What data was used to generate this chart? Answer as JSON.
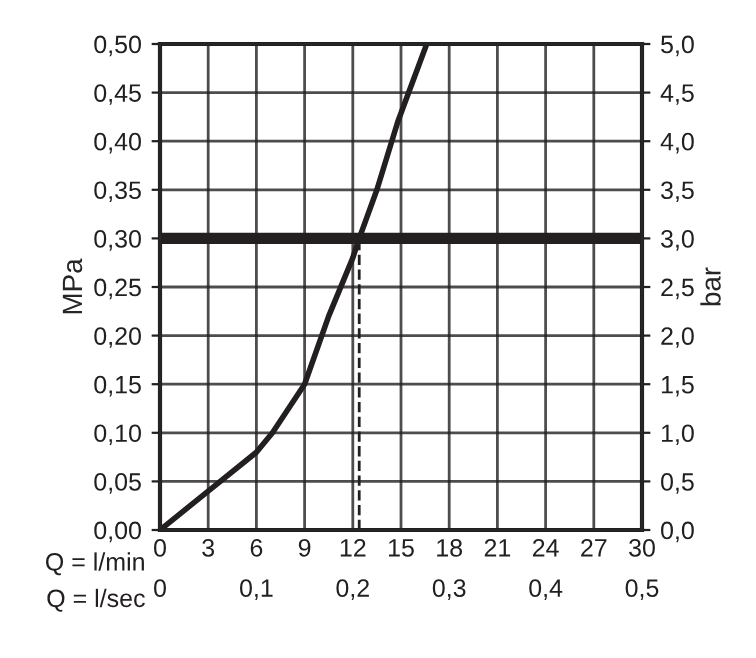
{
  "chart_data": {
    "type": "line",
    "xlabel": "Q = l/min",
    "x2label": "Q = l/sec",
    "ylabel": "MPa",
    "y2label": "bar",
    "x": [
      0,
      3,
      6,
      7,
      9,
      10.5,
      12,
      12.4,
      13.5,
      14.8,
      16.6
    ],
    "series": [
      {
        "color": "#231f20",
        "values": [
          0,
          0.04,
          0.08,
          0.1,
          0.15,
          0.22,
          0.28,
          0.3,
          0.35,
          0.42,
          0.5
        ]
      }
    ],
    "xlim": [
      0,
      30
    ],
    "xticks": [
      0,
      3,
      6,
      9,
      12,
      15,
      18,
      21,
      24,
      27,
      30
    ],
    "ylim": [
      0,
      0.5
    ],
    "yticks": [
      {
        "value": 0,
        "label": "0,00"
      },
      {
        "value": 0.05,
        "label": "0,05"
      },
      {
        "value": 0.1,
        "label": "0,10"
      },
      {
        "value": 0.15,
        "label": "0,15"
      },
      {
        "value": 0.2,
        "label": "0,20"
      },
      {
        "value": 0.25,
        "label": "0,25"
      },
      {
        "value": 0.3,
        "label": "0,30"
      },
      {
        "value": 0.35,
        "label": "0,35"
      },
      {
        "value": 0.4,
        "label": "0,40"
      },
      {
        "value": 0.45,
        "label": "0,45"
      },
      {
        "value": 0.5,
        "label": "0,50"
      }
    ],
    "y2lim": [
      0,
      5
    ],
    "y2ticks": [
      {
        "value": 0,
        "label": "0,0"
      },
      {
        "value": 0.5,
        "label": "0,5"
      },
      {
        "value": 1,
        "label": "1,0"
      },
      {
        "value": 1.5,
        "label": "1,5"
      },
      {
        "value": 2,
        "label": "2,0"
      },
      {
        "value": 2.5,
        "label": "2,5"
      },
      {
        "value": 3,
        "label": "3,0"
      },
      {
        "value": 3.5,
        "label": "3,5"
      },
      {
        "value": 4,
        "label": "4,0"
      },
      {
        "value": 4.5,
        "label": "4,5"
      },
      {
        "value": 5,
        "label": "5,0"
      }
    ],
    "x2lim": [
      0,
      0.5
    ],
    "x2ticks": [
      0,
      {
        "value": 0.1,
        "label": "0,1"
      },
      {
        "value": 0.2,
        "label": "0,2"
      },
      {
        "value": 0.3,
        "label": "0,3"
      },
      {
        "value": 0.4,
        "label": "0,4"
      },
      {
        "value": 0.5,
        "label": "0,5"
      }
    ],
    "ref_lines": [
      {
        "axis": "y",
        "value": 0.3,
        "color": "#231f20",
        "line_style": "solid"
      },
      {
        "axis": "x",
        "value": 12.4,
        "color": "#231f20",
        "line_style": "dashed"
      }
    ],
    "grid": true,
    "marker": "none",
    "line_style": "solid"
  }
}
